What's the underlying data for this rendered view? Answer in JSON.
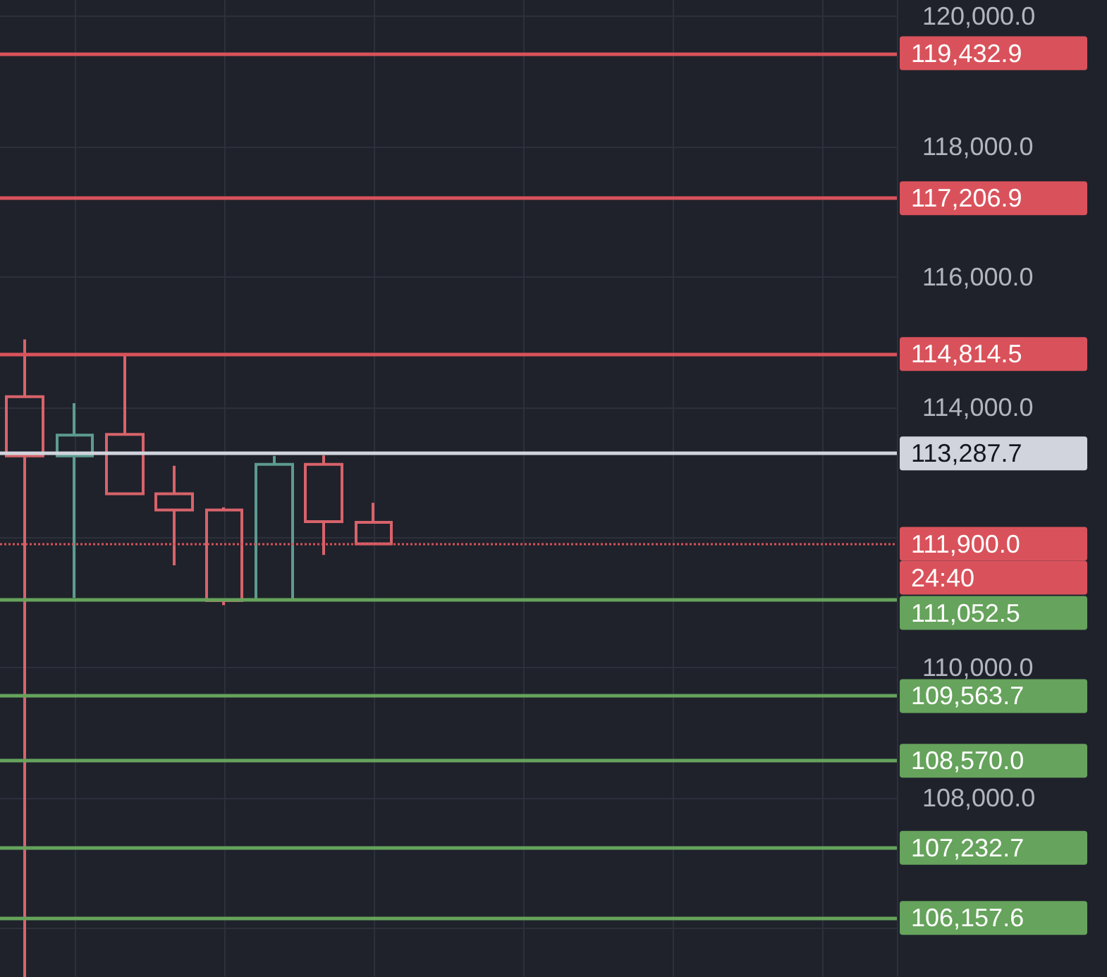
{
  "chart_data": {
    "type": "candlestick",
    "categories": [
      null,
      null,
      null,
      null,
      null,
      null,
      null,
      null,
      null,
      null,
      null,
      null,
      null,
      null,
      null,
      null,
      null,
      null
    ],
    "ohlc": [
      [
        114160,
        115040,
        105250,
        113250
      ],
      [
        113250,
        114060,
        111070,
        113570
      ],
      [
        113580,
        114810,
        112660,
        112670
      ],
      [
        112670,
        113100,
        111570,
        112420
      ],
      [
        112420,
        112460,
        110960,
        111030
      ],
      [
        111040,
        113250,
        111030,
        113120
      ],
      [
        113120,
        113260,
        111730,
        112240
      ],
      [
        112230,
        112530,
        111900,
        111900
      ],
      null,
      null,
      null,
      null,
      null,
      null,
      null,
      null,
      null,
      null
    ],
    "colors": [
      "#d8636b",
      "#5d9b90",
      "#d8636b",
      "#d8636b",
      "#d8636b",
      "#5d9b90",
      "#d8636b",
      "#d8636b",
      null,
      null,
      null,
      null,
      null,
      null,
      null,
      null,
      null,
      null
    ],
    "ylim": [
      105250,
      120250
    ],
    "yticks": [
      {
        "value": 106000,
        "label": null
      },
      {
        "value": 108000,
        "label": "108,000.0"
      },
      {
        "value": 110000,
        "label": "110,000.0"
      },
      {
        "value": 112000,
        "label": null
      },
      {
        "value": 114000,
        "label": "114,000.0"
      },
      {
        "value": 116000,
        "label": "116,000.0"
      },
      {
        "value": 118000,
        "label": "118,000.0"
      },
      {
        "value": 120000,
        "label": "120,000.0"
      }
    ],
    "grid": true,
    "tick_labels": "y",
    "ref_lines": [
      {
        "axis": "y",
        "value": 119432.9,
        "label": "119,432.9",
        "color": "#d9525b"
      },
      {
        "axis": "y",
        "value": 117206.9,
        "label": "117,206.9",
        "color": "#d9525b"
      },
      {
        "axis": "y",
        "value": 114814.5,
        "label": "114,814.5",
        "color": "#d9525b"
      },
      {
        "axis": "y",
        "value": 113287.7,
        "label": "113,287.7",
        "color": "#d1d4dc"
      },
      {
        "axis": "y",
        "value": 111900,
        "label": "111,900.0",
        "color": "#d9525b",
        "line_style": "dotted"
      },
      {
        "axis": "y",
        "value": 111052.5,
        "label": "111,052.5",
        "color": "#66a35c"
      },
      {
        "axis": "y",
        "value": 109563.7,
        "label": "109,563.7",
        "color": "#66a35c"
      },
      {
        "axis": "y",
        "value": 108570.0,
        "label": "108,570.0",
        "color": "#66a35c"
      },
      {
        "axis": "y",
        "value": 107232.7,
        "label": "107,232.7",
        "color": "#66a35c"
      },
      {
        "axis": "y",
        "value": 106157.6,
        "label": "106,157.6",
        "color": "#66a35c"
      }
    ],
    "annotations": [
      "24:40"
    ]
  }
}
